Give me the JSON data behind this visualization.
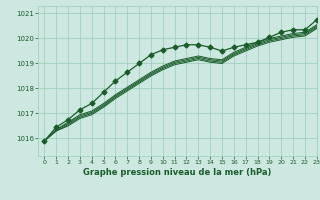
{
  "title": "Graphe pression niveau de la mer (hPa)",
  "bg_color": "#cce8e0",
  "grid_color": "#99ccbb",
  "line_color": "#1a5c2a",
  "xlim": [
    -0.5,
    23
  ],
  "ylim": [
    1015.3,
    1021.3
  ],
  "yticks": [
    1016,
    1017,
    1018,
    1019,
    1020,
    1021
  ],
  "xticks": [
    0,
    1,
    2,
    3,
    4,
    5,
    6,
    7,
    8,
    9,
    10,
    11,
    12,
    13,
    14,
    15,
    16,
    17,
    18,
    19,
    20,
    21,
    22,
    23
  ],
  "series_plain": [
    [
      1015.9,
      1016.35,
      1016.65,
      1016.95,
      1017.1,
      1017.4,
      1017.75,
      1018.05,
      1018.35,
      1018.65,
      1018.9,
      1019.1,
      1019.2,
      1019.3,
      1019.2,
      1019.15,
      1019.45,
      1019.65,
      1019.85,
      1020.0,
      1020.1,
      1020.2,
      1020.25,
      1020.55
    ],
    [
      1015.9,
      1016.35,
      1016.6,
      1016.9,
      1017.05,
      1017.35,
      1017.7,
      1018.0,
      1018.3,
      1018.6,
      1018.85,
      1019.05,
      1019.15,
      1019.25,
      1019.15,
      1019.1,
      1019.4,
      1019.6,
      1019.8,
      1019.95,
      1020.05,
      1020.15,
      1020.2,
      1020.5
    ],
    [
      1015.9,
      1016.3,
      1016.55,
      1016.85,
      1017.0,
      1017.3,
      1017.65,
      1017.95,
      1018.25,
      1018.55,
      1018.8,
      1019.0,
      1019.1,
      1019.2,
      1019.1,
      1019.05,
      1019.35,
      1019.55,
      1019.75,
      1019.9,
      1020.0,
      1020.1,
      1020.15,
      1020.45
    ],
    [
      1015.9,
      1016.3,
      1016.5,
      1016.8,
      1016.95,
      1017.25,
      1017.6,
      1017.9,
      1018.2,
      1018.5,
      1018.75,
      1018.95,
      1019.05,
      1019.15,
      1019.05,
      1019.0,
      1019.3,
      1019.5,
      1019.7,
      1019.85,
      1019.95,
      1020.05,
      1020.1,
      1020.4
    ]
  ],
  "series_marked": [
    1015.9,
    1016.45,
    1016.75,
    1017.15,
    1017.4,
    1017.85,
    1018.3,
    1018.65,
    1019.0,
    1019.35,
    1019.55,
    1019.65,
    1019.75,
    1019.75,
    1019.65,
    1019.5,
    1019.65,
    1019.75,
    1019.85,
    1020.05,
    1020.25,
    1020.35,
    1020.35,
    1020.75
  ],
  "marker_style": "D",
  "marker_size": 2.5
}
